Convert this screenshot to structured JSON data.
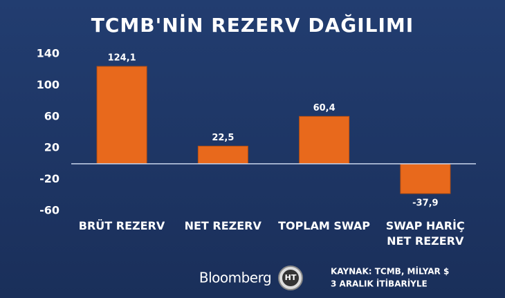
{
  "chart_data": {
    "type": "bar",
    "title": "TCMB'NİN REZERV DAĞILIMI",
    "categories": [
      "BRÜT REZERV",
      "NET REZERV",
      "TOPLAM SWAP",
      "SWAP HARİÇ\nNET REZERV"
    ],
    "values": [
      124.1,
      22.5,
      60.4,
      -37.9
    ],
    "value_labels": [
      "124,1",
      "22,5",
      "60,4",
      "-37,9"
    ],
    "color": "#e8691c",
    "ylim": [
      -60,
      140
    ],
    "yticks": [
      140,
      100,
      60,
      20,
      -20,
      -60
    ],
    "source": [
      "KAYNAK: TCMB, MİLYAR $",
      "3 ARALIK İTİBARİYLE"
    ],
    "logo": "Bloomberg"
  }
}
